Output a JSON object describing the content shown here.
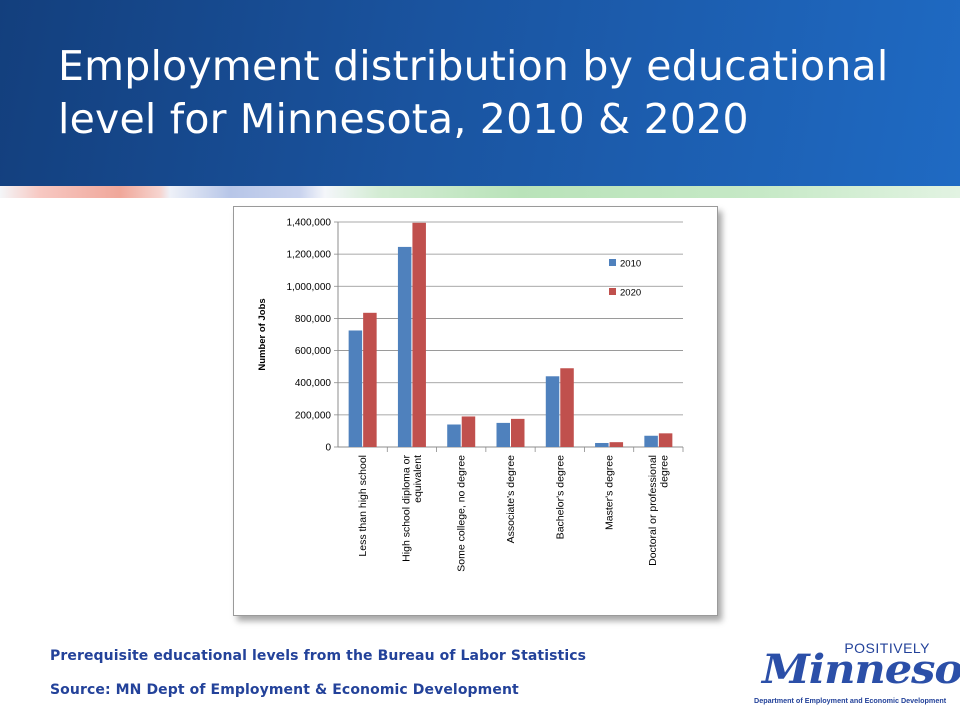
{
  "slide": {
    "title": "Employment distribution by educational level for Minnesota, 2010 & 2020",
    "footnote_1": "Prerequisite educational levels from the Bureau of Labor Statistics",
    "footnote_2": "Source: MN Dept of Employment & Economic Development"
  },
  "logo": {
    "tagline": "POSITIVELY",
    "wordmark": "Minnesota",
    "department": "Department of Employment and Economic Development"
  },
  "colors": {
    "header": "#1a54a0",
    "series_2010": "#4f81bd",
    "series_2020": "#c0504d",
    "footnote_text": "#23429a"
  },
  "chart_data": {
    "type": "bar",
    "ylabel": "Number of Jobs",
    "ylim": [
      0,
      1400000
    ],
    "yticks": [
      "0",
      "200,000",
      "400,000",
      "600,000",
      "800,000",
      "1,000,000",
      "1,200,000",
      "1,400,000"
    ],
    "grid": true,
    "legend_position": "right",
    "categories": [
      [
        "Less than high school"
      ],
      [
        "High school diploma or",
        "equivalent"
      ],
      [
        "Some college, no degree"
      ],
      [
        "Associate's degree"
      ],
      [
        "Bachelor's degree"
      ],
      [
        "Master's degree"
      ],
      [
        "Doctoral or professional",
        "degree"
      ]
    ],
    "series": [
      {
        "name": "2010",
        "values": [
          725000,
          1245000,
          140000,
          150000,
          440000,
          25000,
          70000
        ]
      },
      {
        "name": "2020",
        "values": [
          835000,
          1395000,
          190000,
          175000,
          490000,
          30000,
          85000
        ]
      }
    ]
  }
}
